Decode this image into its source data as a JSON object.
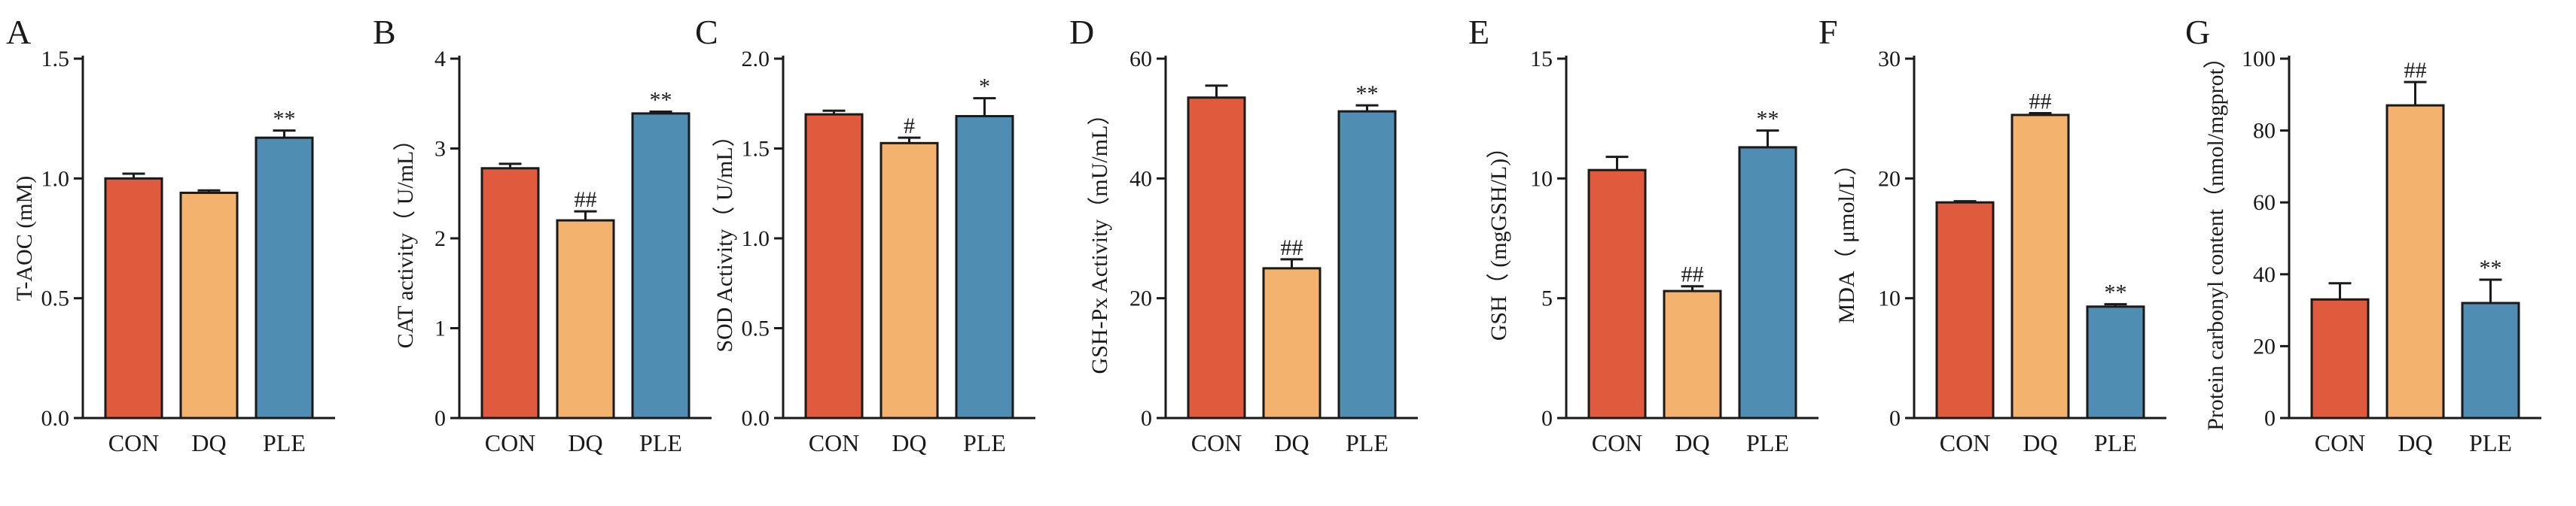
{
  "colors": {
    "CON": "#E05A3D",
    "DQ": "#F3B26E",
    "PLE": "#4F8DB3",
    "axis": "#1a1a1a"
  },
  "chart_data": [
    {
      "panel": "A",
      "type": "bar",
      "ylabel": "T-AOC (mM)",
      "categories": [
        "CON",
        "DQ",
        "PLE"
      ],
      "ylim": [
        0,
        1.5
      ],
      "ticks": [
        0.0,
        0.5,
        1.0,
        1.5
      ],
      "tick_labels": [
        "0.0",
        "0.5",
        "1.0",
        "1.5"
      ],
      "values": [
        1.0,
        0.94,
        1.17
      ],
      "errors": [
        0.02,
        0.01,
        0.03
      ],
      "annotations": [
        "",
        "",
        "**"
      ]
    },
    {
      "panel": "B",
      "type": "bar",
      "ylabel": "CAT activity（ U/mL）",
      "categories": [
        "CON",
        "DQ",
        "PLE"
      ],
      "ylim": [
        0,
        4
      ],
      "ticks": [
        0,
        1,
        2,
        3,
        4
      ],
      "tick_labels": [
        "0",
        "1",
        "2",
        "3",
        "4"
      ],
      "values": [
        2.78,
        2.2,
        3.39
      ],
      "errors": [
        0.05,
        0.1,
        0.02
      ],
      "annotations": [
        "",
        "##",
        "**"
      ]
    },
    {
      "panel": "C",
      "type": "bar",
      "ylabel": "SOD Activity（ U/mL）",
      "categories": [
        "CON",
        "DQ",
        "PLE"
      ],
      "ylim": [
        0,
        2.0
      ],
      "ticks": [
        0.0,
        0.5,
        1.0,
        1.5,
        2.0
      ],
      "tick_labels": [
        "0.0",
        "0.5",
        "1.0",
        "1.5",
        "2.0"
      ],
      "values": [
        1.69,
        1.53,
        1.68
      ],
      "errors": [
        0.02,
        0.03,
        0.1
      ],
      "annotations": [
        "",
        "#",
        "*"
      ]
    },
    {
      "panel": "D",
      "type": "bar",
      "ylabel": "GSH-Px Activity（mU/mL）",
      "categories": [
        "CON",
        "DQ",
        "PLE"
      ],
      "ylim": [
        0,
        60
      ],
      "ticks": [
        0,
        20,
        40,
        60
      ],
      "tick_labels": [
        "0",
        "20",
        "40",
        "60"
      ],
      "values": [
        53.5,
        25.0,
        51.2
      ],
      "errors": [
        2.0,
        1.5,
        1.0
      ],
      "annotations": [
        "",
        "##",
        "**"
      ]
    },
    {
      "panel": "E",
      "type": "bar",
      "ylabel": "GSH（ (mgGSH/L)）",
      "categories": [
        "CON",
        "DQ",
        "PLE"
      ],
      "ylim": [
        0,
        15
      ],
      "ticks": [
        0,
        5,
        10,
        15
      ],
      "tick_labels": [
        "0",
        "5",
        "10",
        "15"
      ],
      "values": [
        10.35,
        5.3,
        11.3
      ],
      "errors": [
        0.55,
        0.2,
        0.7
      ],
      "annotations": [
        "",
        "##",
        "**"
      ]
    },
    {
      "panel": "F",
      "type": "bar",
      "ylabel": "MDA（ μmol/L）",
      "categories": [
        "CON",
        "DQ",
        "PLE"
      ],
      "ylim": [
        0,
        30
      ],
      "ticks": [
        0,
        10,
        20,
        30
      ],
      "tick_labels": [
        "0",
        "10",
        "20",
        "30"
      ],
      "values": [
        18.0,
        25.3,
        9.3
      ],
      "errors": [
        0.1,
        0.15,
        0.2
      ],
      "annotations": [
        "",
        "##",
        "**"
      ]
    },
    {
      "panel": "G",
      "type": "bar",
      "ylabel": "Protein carbonyl content（nmol/mgprot）",
      "categories": [
        "CON",
        "DQ",
        "PLE"
      ],
      "ylim": [
        0,
        100
      ],
      "ticks": [
        0,
        20,
        40,
        60,
        80,
        100
      ],
      "tick_labels": [
        "0",
        "20",
        "40",
        "60",
        "80",
        "100"
      ],
      "values": [
        33.0,
        87.0,
        32.0
      ],
      "errors": [
        4.5,
        6.5,
        6.5
      ],
      "annotations": [
        "",
        "##",
        "**"
      ]
    }
  ]
}
